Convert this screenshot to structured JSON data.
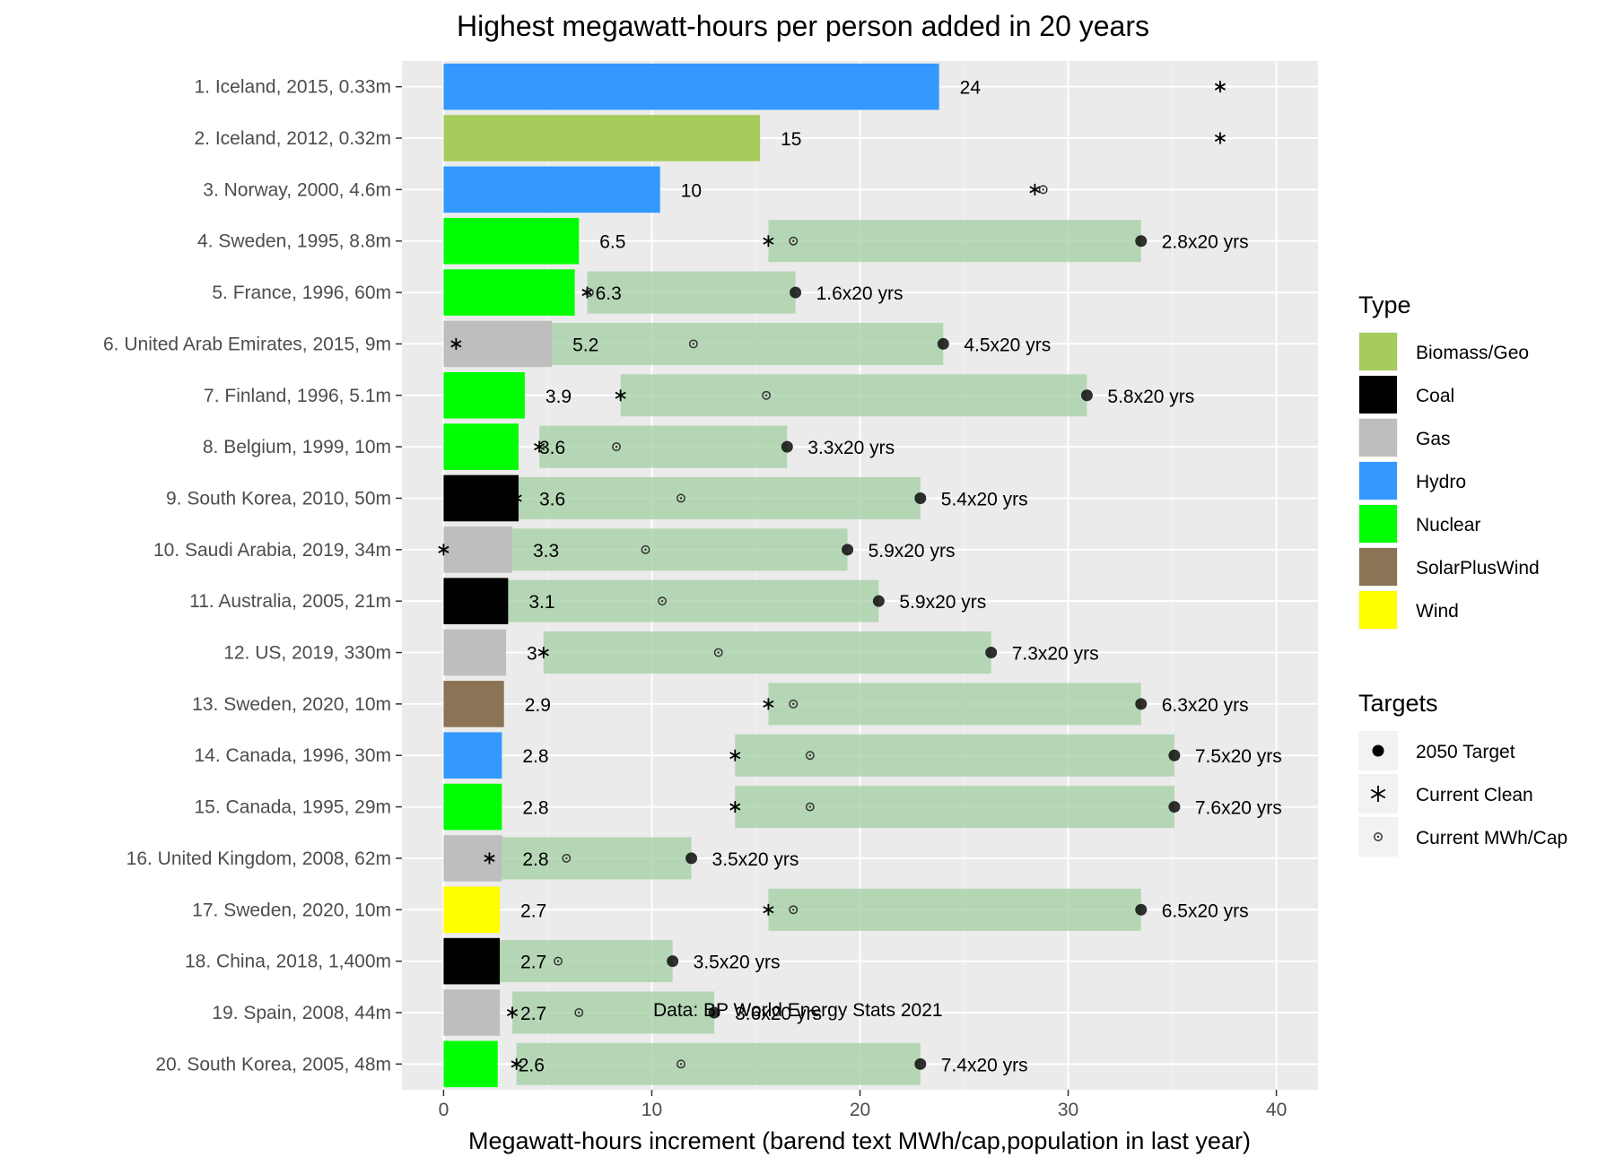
{
  "chart_data": {
    "type": "bar",
    "title": "Highest megawatt-hours per person added in 20 years",
    "xlabel": "Megawatt-hours increment (barend text MWh/cap,population in last year)",
    "ylabel": "",
    "xlim": [
      -2,
      42
    ],
    "x_ticks": [
      0,
      10,
      20,
      30,
      40
    ],
    "grid": true,
    "legend_position": "right",
    "annotation": "Data: BP World Energy Stats 2021",
    "type_legend": {
      "title": "Type",
      "entries": [
        {
          "label": "Biomass/Geo",
          "color": "#a6cc5c"
        },
        {
          "label": "Coal",
          "color": "#000000"
        },
        {
          "label": "Gas",
          "color": "#bebebe"
        },
        {
          "label": "Hydro",
          "color": "#3399ff"
        },
        {
          "label": "Nuclear",
          "color": "#00ff00"
        },
        {
          "label": "SolarPlusWind",
          "color": "#8b7355"
        },
        {
          "label": "Wind",
          "color": "#ffff00"
        }
      ]
    },
    "targets_legend": {
      "title": "Targets",
      "entries": [
        {
          "label": "2050 Target",
          "symbol": "filled-circle"
        },
        {
          "label": "Current Clean",
          "symbol": "asterisk"
        },
        {
          "label": "Current MWh/Cap",
          "symbol": "ringed-circle"
        }
      ]
    },
    "target_band_color": "#a3cfa3",
    "rows": [
      {
        "label": "1. Iceland, 2015, 0.33m",
        "type": "Hydro",
        "value": 23.8,
        "value_label": "24",
        "current_clean": 37.3,
        "current_mwh": null,
        "target": null,
        "target_label": ""
      },
      {
        "label": "2. Iceland, 2012, 0.32m",
        "type": "Biomass/Geo",
        "value": 15.2,
        "value_label": "15",
        "current_clean": 37.3,
        "current_mwh": null,
        "target": null,
        "target_label": ""
      },
      {
        "label": "3. Norway, 2000, 4.6m",
        "type": "Hydro",
        "value": 10.4,
        "value_label": "10",
        "current_clean": 28.4,
        "current_mwh": 28.8,
        "target": null,
        "target_label": ""
      },
      {
        "label": "4. Sweden, 1995, 8.8m",
        "type": "Nuclear",
        "value": 6.5,
        "value_label": "6.5",
        "current_clean": 15.6,
        "current_mwh": 16.8,
        "target": 33.5,
        "target_label": "2.8x20 yrs"
      },
      {
        "label": "5. France, 1996, 60m",
        "type": "Nuclear",
        "value": 6.3,
        "value_label": "6.3",
        "current_clean": 6.9,
        "current_mwh": 7.0,
        "target": 16.9,
        "target_label": "1.6x20 yrs"
      },
      {
        "label": "6. United Arab Emirates, 2015, 9m",
        "type": "Gas",
        "value": 5.2,
        "value_label": "5.2",
        "current_clean": 0.6,
        "current_mwh": 12.0,
        "target": 24.0,
        "target_label": "4.5x20 yrs"
      },
      {
        "label": "7. Finland, 1996, 5.1m",
        "type": "Nuclear",
        "value": 3.9,
        "value_label": "3.9",
        "current_clean": 8.5,
        "current_mwh": 15.5,
        "target": 30.9,
        "target_label": "5.8x20 yrs"
      },
      {
        "label": "8. Belgium, 1999, 10m",
        "type": "Nuclear",
        "value": 3.6,
        "value_label": "3.6",
        "current_clean": 4.6,
        "current_mwh": 8.3,
        "target": 16.5,
        "target_label": "3.3x20 yrs"
      },
      {
        "label": "9. South Korea, 2010, 50m",
        "type": "Coal",
        "value": 3.6,
        "value_label": "3.6",
        "current_clean": 3.5,
        "current_mwh": 11.4,
        "target": 22.9,
        "target_label": "5.4x20 yrs"
      },
      {
        "label": "10. Saudi Arabia, 2019, 34m",
        "type": "Gas",
        "value": 3.3,
        "value_label": "3.3",
        "current_clean": 0.0,
        "current_mwh": 9.7,
        "target": 19.4,
        "target_label": "5.9x20 yrs"
      },
      {
        "label": "11. Australia, 2005, 21m",
        "type": "Coal",
        "value": 3.1,
        "value_label": "3.1",
        "current_clean": 2.4,
        "current_mwh": 10.5,
        "target": 20.9,
        "target_label": "5.9x20 yrs"
      },
      {
        "label": "12. US, 2019, 330m",
        "type": "Gas",
        "value": 3.0,
        "value_label": "3",
        "current_clean": 4.8,
        "current_mwh": 13.2,
        "target": 26.3,
        "target_label": "7.3x20 yrs"
      },
      {
        "label": "13. Sweden, 2020, 10m",
        "type": "SolarPlusWind",
        "value": 2.9,
        "value_label": "2.9",
        "current_clean": 15.6,
        "current_mwh": 16.8,
        "target": 33.5,
        "target_label": "6.3x20 yrs"
      },
      {
        "label": "14. Canada, 1996, 30m",
        "type": "Hydro",
        "value": 2.8,
        "value_label": "2.8",
        "current_clean": 14.0,
        "current_mwh": 17.6,
        "target": 35.1,
        "target_label": "7.5x20 yrs"
      },
      {
        "label": "15. Canada, 1995, 29m",
        "type": "Nuclear",
        "value": 2.8,
        "value_label": "2.8",
        "current_clean": 14.0,
        "current_mwh": 17.6,
        "target": 35.1,
        "target_label": "7.6x20 yrs"
      },
      {
        "label": "16. United Kingdom, 2008, 62m",
        "type": "Gas",
        "value": 2.8,
        "value_label": "2.8",
        "current_clean": 2.2,
        "current_mwh": 5.9,
        "target": 11.9,
        "target_label": "3.5x20 yrs"
      },
      {
        "label": "17. Sweden, 2020, 10m",
        "type": "Wind",
        "value": 2.7,
        "value_label": "2.7",
        "current_clean": 15.6,
        "current_mwh": 16.8,
        "target": 33.5,
        "target_label": "6.5x20 yrs"
      },
      {
        "label": "18. China, 2018, 1,400m",
        "type": "Coal",
        "value": 2.7,
        "value_label": "2.7",
        "current_clean": 1.7,
        "current_mwh": 5.5,
        "target": 11.0,
        "target_label": "3.5x20 yrs"
      },
      {
        "label": "19. Spain, 2008, 44m",
        "type": "Gas",
        "value": 2.7,
        "value_label": "2.7",
        "current_clean": 3.3,
        "current_mwh": 6.5,
        "target": 13.0,
        "target_label": "3.6x20 yrs"
      },
      {
        "label": "20. South Korea, 2005, 48m",
        "type": "Nuclear",
        "value": 2.6,
        "value_label": "2.6",
        "current_clean": 3.5,
        "current_mwh": 11.4,
        "target": 22.9,
        "target_label": "7.4x20 yrs"
      }
    ]
  }
}
